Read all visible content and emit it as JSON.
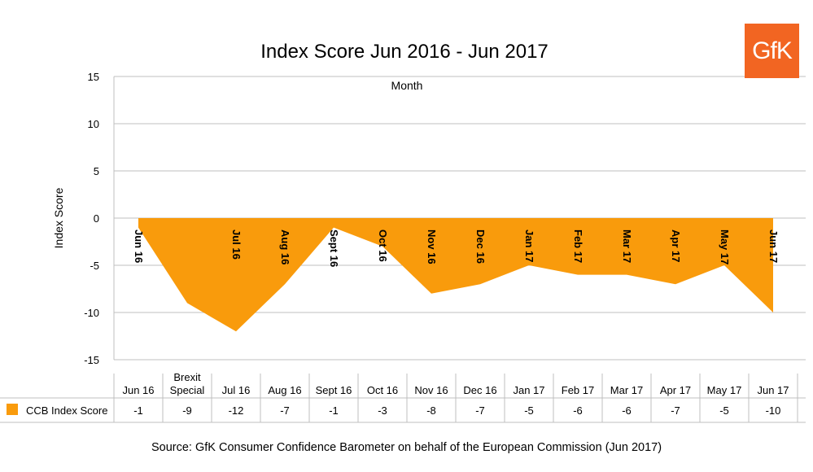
{
  "logo_text": "GfK",
  "source": "Source: GfK Consumer Confidence Barometer on behalf of the European Commission (Jun 2017)",
  "colors": {
    "series": "#f99b0c",
    "grid": "#bfbfbf",
    "text": "#000000"
  },
  "chart_data": {
    "type": "area",
    "title": "Index Score Jun 2016 - Jun 2017",
    "xlabel": "Month",
    "ylabel": "Index Score",
    "ylim": [
      -15,
      15
    ],
    "yticks": [
      15,
      10,
      5,
      0,
      -5,
      -10,
      -15
    ],
    "grid": true,
    "categories": [
      "Jun 16",
      "Brexit Special",
      "Jul 16",
      "Aug 16",
      "Sept 16",
      "Oct 16",
      "Nov 16",
      "Dec 16",
      "Jan 17",
      "Feb 17",
      "Mar 17",
      "Apr 17",
      "May 17",
      "Jun 17"
    ],
    "table_categories": [
      "Jun 16",
      "Brexit\nSpecial",
      "Jul 16",
      "Aug 16",
      "Sept 16",
      "Oct 16",
      "Nov 16",
      "Dec 16",
      "Jan 17",
      "Feb 17",
      "Mar 17",
      "Apr 17",
      "May 17",
      "Jun 17"
    ],
    "series": [
      {
        "name": "CCB Index Score",
        "values": [
          -1,
          -9,
          -12,
          -7,
          -1,
          -3,
          -8,
          -7,
          -5,
          -6,
          -6,
          -7,
          -5,
          -10
        ]
      }
    ],
    "table_values": [
      "-1",
      "-9",
      "-12",
      "-7",
      "-1",
      "-3",
      "-8",
      "-7",
      "-5",
      "-6",
      "-6",
      "-7",
      "-5",
      "-10"
    ],
    "rotated_labels": [
      "Jun 16",
      "",
      "Jul 16",
      "Aug 16",
      "Sept 16",
      "Oct 16",
      "Nov 16",
      "Dec 16",
      "Jan 17",
      "Feb 17",
      "Mar 17",
      "Apr 17",
      "May 17",
      "Jun 17"
    ]
  }
}
